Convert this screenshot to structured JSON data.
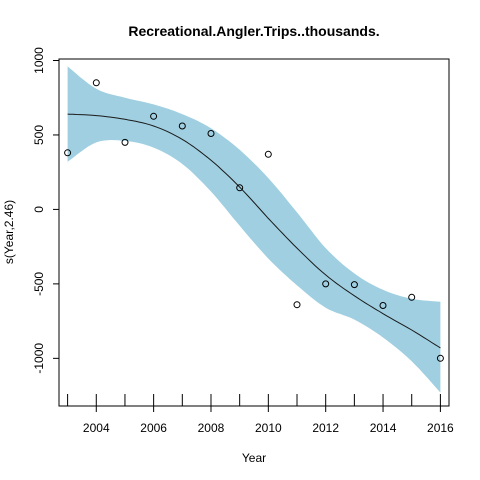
{
  "chart_data": {
    "type": "line",
    "title": "Recreational.Angler.Trips..thousands.",
    "xlabel": "Year",
    "ylabel": "s(Year,2.46)",
    "xlim": [
      2002.7,
      2016.3
    ],
    "ylim": [
      -1320,
      1010
    ],
    "x_ticks": [
      2004,
      2006,
      2008,
      2010,
      2012,
      2014,
      2016
    ],
    "y_ticks": [
      -1000,
      -500,
      0,
      500,
      1000
    ],
    "grid": false,
    "colors": {
      "band": "#9fcfe0",
      "line": "#1a1a1a",
      "points": "#000000"
    },
    "smooth": {
      "x": [
        2003,
        2004,
        2005,
        2006,
        2007,
        2008,
        2009,
        2010,
        2011,
        2012,
        2013,
        2014,
        2015,
        2016
      ],
      "fit": [
        640,
        630,
        605,
        560,
        470,
        330,
        150,
        -60,
        -260,
        -440,
        -580,
        -700,
        -810,
        -930
      ],
      "upper": [
        960,
        810,
        750,
        705,
        640,
        545,
        400,
        210,
        -20,
        -260,
        -430,
        -540,
        -600,
        -620
      ],
      "lower": [
        320,
        450,
        460,
        415,
        305,
        120,
        -110,
        -330,
        -510,
        -660,
        -740,
        -860,
        -1020,
        -1230
      ]
    },
    "points": {
      "x": [
        2003,
        2004,
        2005,
        2006,
        2007,
        2008,
        2009,
        2010,
        2011,
        2012,
        2013,
        2014,
        2015,
        2016
      ],
      "y": [
        380,
        850,
        450,
        625,
        560,
        510,
        145,
        370,
        -640,
        -500,
        -505,
        -645,
        -590,
        -1000
      ]
    }
  }
}
